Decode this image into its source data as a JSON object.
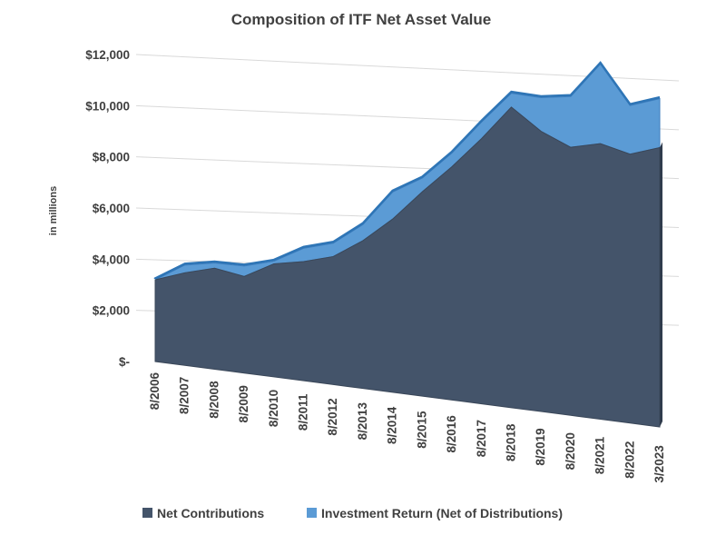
{
  "chart_data": {
    "type": "area",
    "title": "Composition of ITF Net Asset Value",
    "xlabel": "",
    "ylabel": "in millions",
    "ylim": [
      0,
      12000
    ],
    "yticks": [
      0,
      2000,
      4000,
      6000,
      8000,
      10000,
      12000
    ],
    "ytick_labels": [
      "$-",
      "$2,000",
      "$4,000",
      "$6,000",
      "$8,000",
      "$10,000",
      "$12,000"
    ],
    "categories": [
      "8/2006",
      "8/2007",
      "8/2008",
      "8/2009",
      "8/2010",
      "8/2011",
      "8/2012",
      "8/2013",
      "8/2014",
      "8/2015",
      "8/2016",
      "8/2017",
      "8/2018",
      "8/2019",
      "8/2020",
      "8/2021",
      "8/2022",
      "3/2023"
    ],
    "stacked": true,
    "grid": true,
    "legend_position": "bottom",
    "series": [
      {
        "name": "Net Contributions",
        "color": "#44546a",
        "values": [
          3200,
          3600,
          3900,
          3700,
          4300,
          4500,
          4800,
          5500,
          6400,
          7500,
          8500,
          9600,
          10800,
          10000,
          9500,
          9700,
          9400,
          9700
        ]
      },
      {
        "name": "Investment Return (Net of Distributions)",
        "color": "#5b9bd5",
        "values": [
          0,
          300,
          200,
          400,
          100,
          500,
          500,
          600,
          1000,
          500,
          500,
          600,
          500,
          1200,
          1800,
          2800,
          1700,
          1700
        ]
      }
    ]
  }
}
